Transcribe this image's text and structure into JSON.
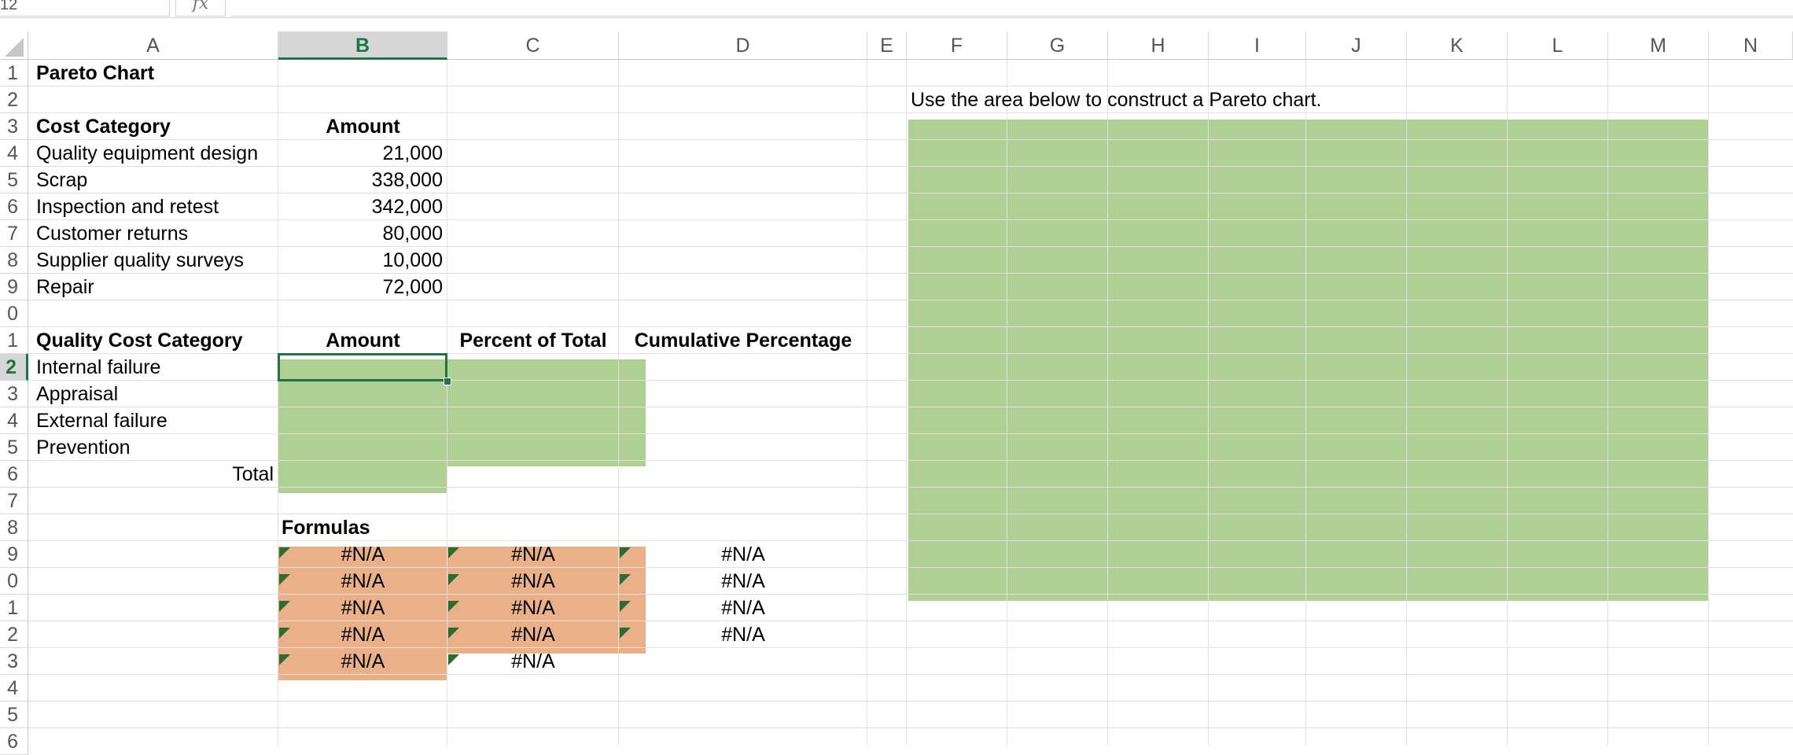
{
  "formula_bar": {
    "name_box": "12",
    "fx_label": "fx",
    "formula": ""
  },
  "columns": [
    "A",
    "B",
    "C",
    "D",
    "E",
    "F",
    "G",
    "H",
    "I",
    "J",
    "K",
    "L",
    "M",
    "N"
  ],
  "active_column": "B",
  "rows": [
    "1",
    "2",
    "3",
    "4",
    "5",
    "6",
    "7",
    "8",
    "9",
    "0",
    "1",
    "2",
    "3",
    "4",
    "5",
    "6",
    "7",
    "8",
    "9",
    "0",
    "1",
    "2",
    "3",
    "4",
    "5",
    "6"
  ],
  "active_row_index": 11,
  "sheet": {
    "title": "Pareto Chart",
    "cost_table": {
      "header_category": "Cost Category",
      "header_amount": "Amount",
      "rows": [
        {
          "category": "Quality equipment design",
          "amount": "21,000"
        },
        {
          "category": "Scrap",
          "amount": "338,000"
        },
        {
          "category": "Inspection and retest",
          "amount": "342,000"
        },
        {
          "category": "Customer returns",
          "amount": "80,000"
        },
        {
          "category": "Supplier quality surveys",
          "amount": "10,000"
        },
        {
          "category": "Repair",
          "amount": "72,000"
        }
      ]
    },
    "quality_table": {
      "header_category": "Quality Cost Category",
      "header_amount": "Amount",
      "header_percent": "Percent of Total",
      "header_cumulative": "Cumulative Percentage",
      "rows": [
        "Internal failure",
        "Appraisal",
        "External failure",
        "Prevention"
      ],
      "total_label": "Total"
    },
    "formulas": {
      "label": "Formulas",
      "col_b": [
        "#N/A",
        "#N/A",
        "#N/A",
        "#N/A",
        "#N/A"
      ],
      "col_c": [
        "#N/A",
        "#N/A",
        "#N/A",
        "#N/A",
        "#N/A"
      ],
      "col_d": [
        "#N/A",
        "#N/A",
        "#N/A",
        "#N/A"
      ]
    },
    "chart_instruction": "Use the area below to construct a Pareto chart."
  },
  "colors": {
    "input_green": "#b0cf94",
    "formula_orange": "#eab08a",
    "accent": "#217346"
  }
}
